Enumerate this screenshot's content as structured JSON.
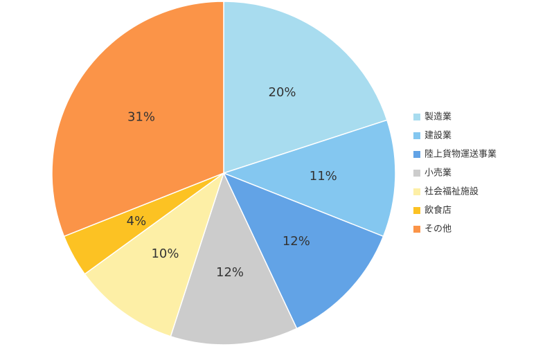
{
  "chart_data": {
    "type": "pie",
    "start_angle_deg": 0,
    "direction": "clockwise",
    "legend_position": "right",
    "slices": [
      {
        "label": "製造業",
        "value": 20,
        "display": "20%",
        "color": "#a8dcef"
      },
      {
        "label": "建設業",
        "value": 11,
        "display": "11%",
        "color": "#84c7f0"
      },
      {
        "label": "陸上貨物運送事業",
        "value": 12,
        "display": "12%",
        "color": "#62a3e6"
      },
      {
        "label": "小売業",
        "value": 12,
        "display": "12%",
        "color": "#cccccc"
      },
      {
        "label": "社会福祉施設",
        "value": 10,
        "display": "10%",
        "color": "#fdefa6"
      },
      {
        "label": "飲食店",
        "value": 4,
        "display": "4%",
        "color": "#fcc223"
      },
      {
        "label": "その他",
        "value": 31,
        "display": "31%",
        "color": "#fb9448"
      }
    ]
  }
}
